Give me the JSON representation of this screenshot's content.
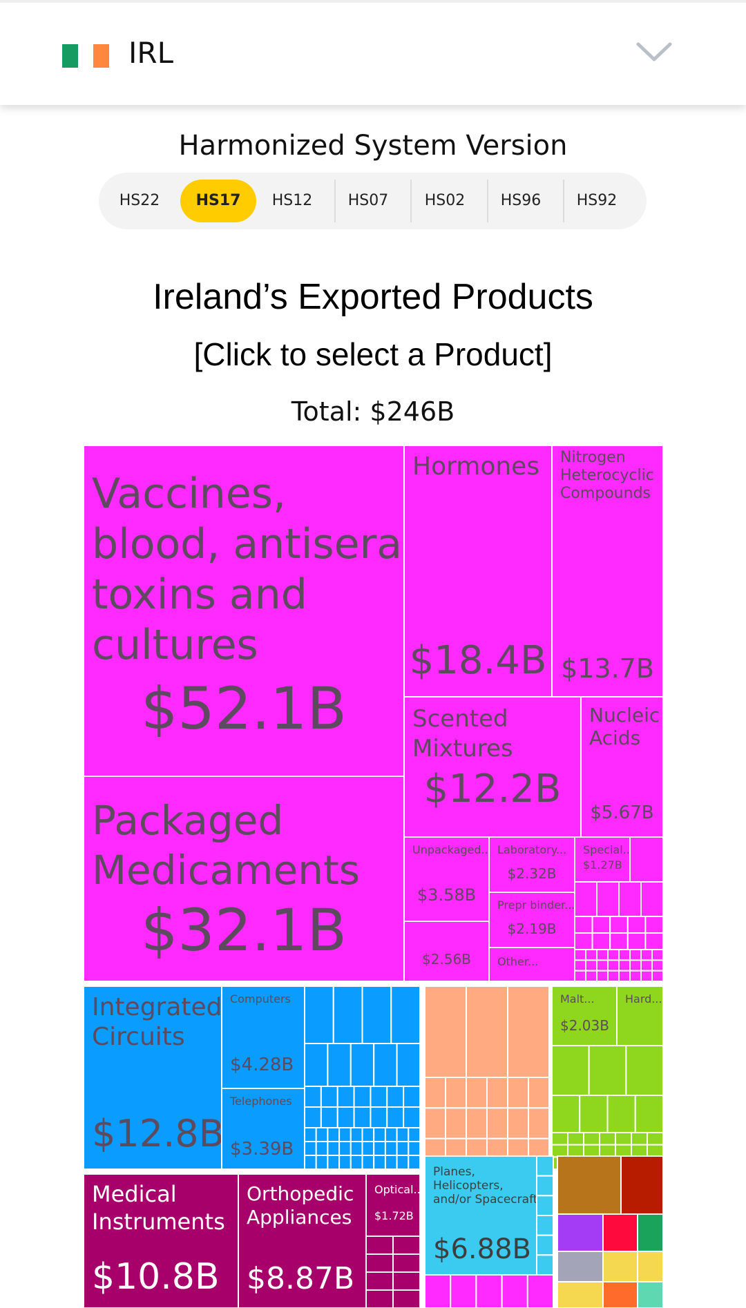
{
  "header": {
    "country_code": "IRL",
    "flag_colors": [
      "#169b62",
      "#ffffff",
      "#ff883e"
    ]
  },
  "hs_selector": {
    "title": "Harmonized System Version",
    "options": [
      "HS22",
      "HS17",
      "HS12",
      "HS07",
      "HS02",
      "HS96",
      "HS92"
    ],
    "selected": "HS17",
    "active_color": "#ffcc00"
  },
  "page": {
    "title": "Ireland’s Exported Products",
    "subtitle": "[Click to select a Product]",
    "total": "Total: $246B"
  },
  "chart_data": {
    "type": "treemap",
    "unit": "USD billions",
    "total": 246,
    "colors": {
      "chemicals": "#ff2aff",
      "machines": "#0a9cff",
      "plastics": "#ffaa80",
      "vegetable": "#8fd61f",
      "instruments": "#a8006b",
      "transport": "#3ccbf0",
      "other": "#f5d750"
    },
    "items": [
      {
        "label": "Vaccines, blood, antisera, toxins and cultures",
        "value": "$52.1B",
        "amount": 52.1,
        "group": "chemicals"
      },
      {
        "label": "Packaged Medicaments",
        "value": "$32.1B",
        "amount": 32.1,
        "group": "chemicals"
      },
      {
        "label": "Hormones",
        "value": "$18.4B",
        "amount": 18.4,
        "group": "chemicals"
      },
      {
        "label": "Nitrogen Heterocyclic Compounds",
        "value": "$13.7B",
        "amount": 13.7,
        "group": "chemicals"
      },
      {
        "label": "Scented Mixtures",
        "value": "$12.2B",
        "amount": 12.2,
        "group": "chemicals"
      },
      {
        "label": "Nucleic Acids",
        "value": "$5.67B",
        "amount": 5.67,
        "group": "chemicals"
      },
      {
        "label": "Unpackaged...",
        "value": "$3.58B",
        "amount": 3.58,
        "group": "chemicals"
      },
      {
        "label": "Laboratory...",
        "value": "$2.32B",
        "amount": 2.32,
        "group": "chemicals"
      },
      {
        "label": "Special...",
        "value": "$1.27B",
        "amount": 1.27,
        "group": "chemicals"
      },
      {
        "label": "Prepr binder...",
        "value": "$2.19B",
        "amount": 2.19,
        "group": "chemicals"
      },
      {
        "label": "",
        "value": "$2.56B",
        "amount": 2.56,
        "group": "chemicals"
      },
      {
        "label": "Other...",
        "value": "",
        "amount": null,
        "group": "chemicals"
      },
      {
        "label": "Integrated Circuits",
        "value": "$12.8B",
        "amount": 12.8,
        "group": "machines"
      },
      {
        "label": "Computers",
        "value": "$4.28B",
        "amount": 4.28,
        "group": "machines"
      },
      {
        "label": "Telephones",
        "value": "$3.39B",
        "amount": 3.39,
        "group": "machines"
      },
      {
        "label": "Malt...",
        "value": "$2.03B",
        "amount": 2.03,
        "group": "vegetable"
      },
      {
        "label": "Hard...",
        "value": "",
        "amount": null,
        "group": "vegetable"
      },
      {
        "label": "Medical Instruments",
        "value": "$10.8B",
        "amount": 10.8,
        "group": "instruments"
      },
      {
        "label": "Orthopedic Appliances",
        "value": "$8.87B",
        "amount": 8.87,
        "group": "instruments"
      },
      {
        "label": "Optical...",
        "value": "$1.72B",
        "amount": 1.72,
        "group": "instruments"
      },
      {
        "label": "Planes, Helicopters, and/or Spacecraft",
        "value": "$6.88B",
        "amount": 6.88,
        "group": "transport"
      }
    ]
  }
}
